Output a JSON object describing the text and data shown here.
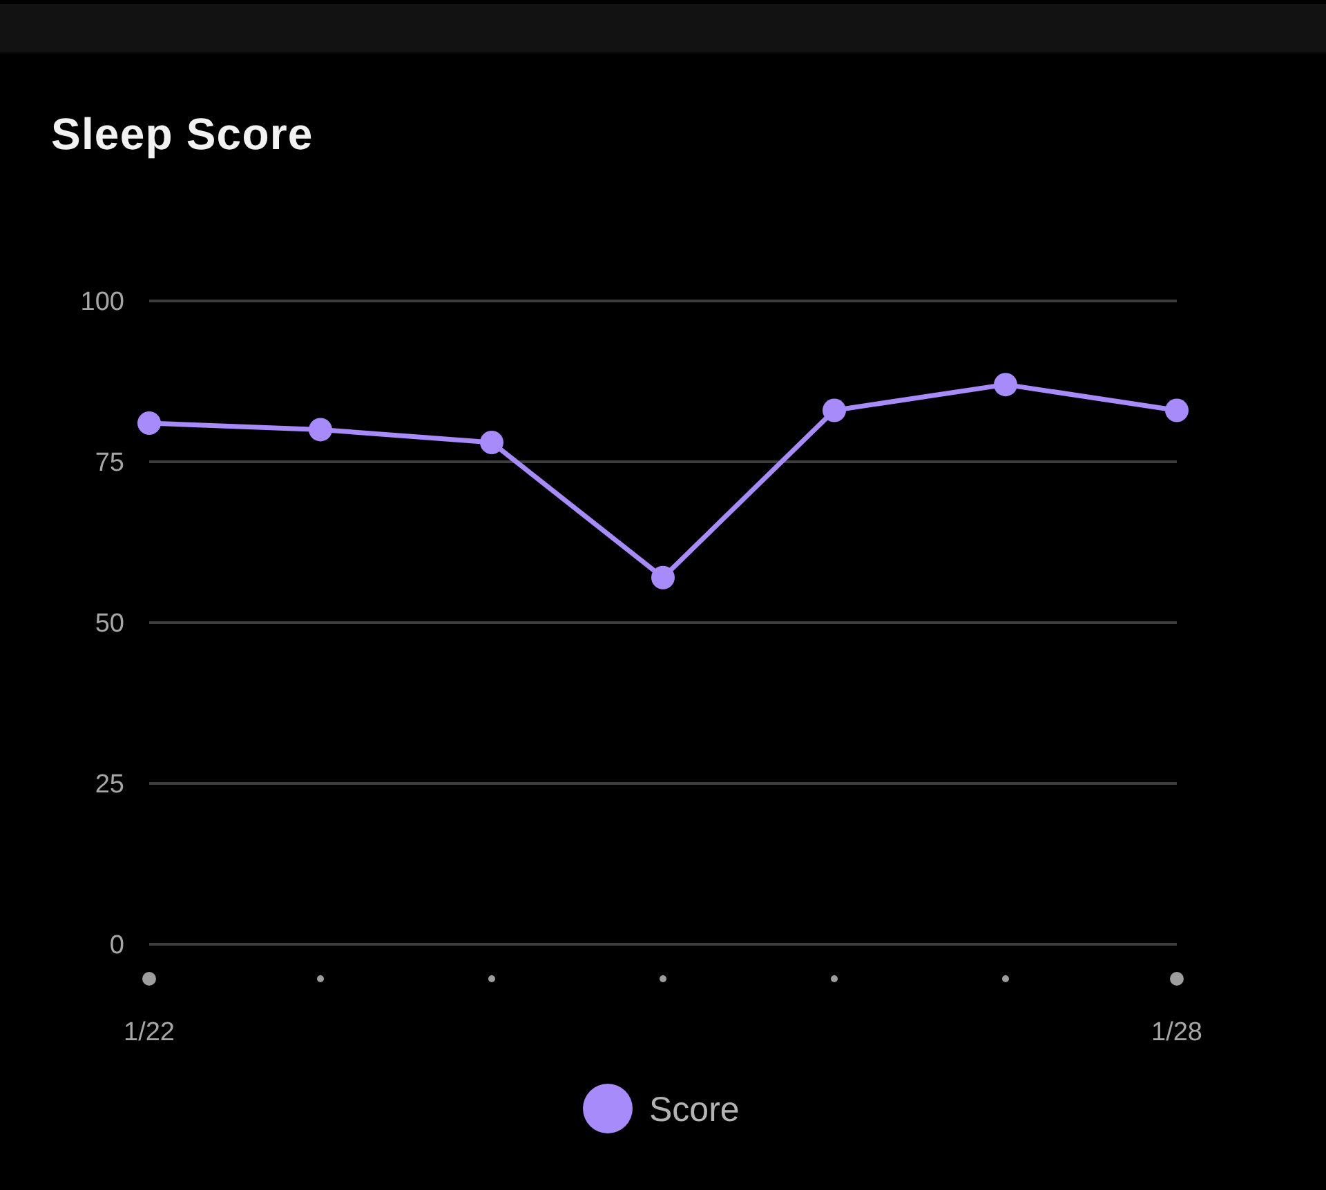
{
  "chart_data": {
    "type": "line",
    "title": "Sleep Score",
    "categories": [
      "1/22",
      null,
      null,
      null,
      null,
      null,
      "1/28"
    ],
    "series": [
      {
        "name": "Score",
        "color": "#a78bfa",
        "values": [
          81,
          80,
          78,
          57,
          83,
          87,
          83
        ]
      }
    ],
    "ylim": [
      0,
      100
    ],
    "yticks": [
      0,
      25,
      50,
      75,
      100
    ],
    "grid": "y",
    "legend": "bottom",
    "marker": "circle"
  }
}
